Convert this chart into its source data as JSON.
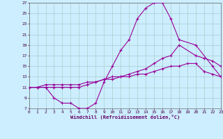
{
  "bg_color": "#cceeff",
  "line_color": "#990099",
  "grid_color": "#aacccc",
  "xlabel": "Windchill (Refroidissement éolien,°C)",
  "xlim": [
    0,
    23
  ],
  "ylim": [
    7,
    27
  ],
  "xticks": [
    0,
    1,
    2,
    3,
    4,
    5,
    6,
    7,
    8,
    9,
    10,
    11,
    12,
    13,
    14,
    15,
    16,
    17,
    18,
    19,
    20,
    21,
    22,
    23
  ],
  "yticks": [
    7,
    9,
    11,
    13,
    15,
    17,
    19,
    21,
    23,
    25,
    27
  ],
  "s1_x": [
    0,
    1,
    2,
    3,
    4,
    5,
    6,
    7,
    8,
    9,
    10,
    11,
    12,
    13,
    14,
    15,
    16,
    17,
    18,
    20,
    22,
    23
  ],
  "s1_y": [
    11,
    11,
    11,
    9,
    8,
    8,
    7,
    7,
    8,
    12,
    15,
    18,
    20,
    24,
    26,
    27,
    27,
    24,
    20,
    19,
    15,
    13
  ],
  "s2_x": [
    0,
    1,
    2,
    3,
    4,
    5,
    6,
    7,
    8,
    9,
    10,
    11,
    12,
    13,
    14,
    15,
    16,
    17,
    18,
    20,
    21,
    22,
    23
  ],
  "s2_y": [
    11,
    11,
    11,
    11,
    11,
    11,
    11,
    11.5,
    12,
    12.5,
    13,
    13,
    13.5,
    14,
    14.5,
    15.5,
    16.5,
    17,
    19,
    17,
    16.5,
    16,
    15
  ],
  "s3_x": [
    0,
    1,
    2,
    3,
    4,
    5,
    6,
    7,
    8,
    9,
    10,
    11,
    12,
    13,
    14,
    15,
    16,
    17,
    18,
    19,
    20,
    21,
    22,
    23
  ],
  "s3_y": [
    11,
    11,
    11.5,
    11.5,
    11.5,
    11.5,
    11.5,
    12,
    12,
    12.5,
    12.5,
    13,
    13,
    13.5,
    13.5,
    14,
    14.5,
    15,
    15,
    15.5,
    15.5,
    14,
    13.5,
    13
  ]
}
